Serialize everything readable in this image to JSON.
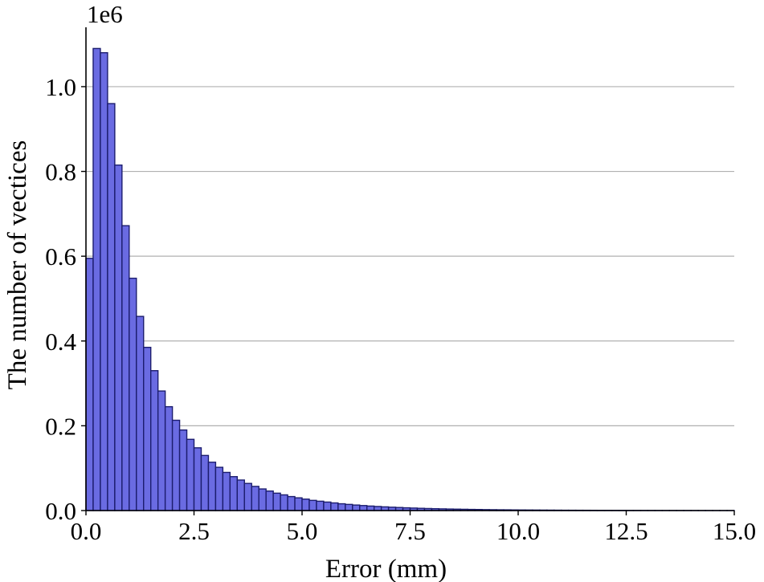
{
  "chart_data": {
    "type": "bar",
    "subtype": "histogram",
    "title": "",
    "xlabel": "Error (mm)",
    "ylabel": "The number of vectices",
    "y_multiplier_label": "1e6",
    "xlim": [
      0,
      15
    ],
    "ylim": [
      0,
      1.14
    ],
    "y_scale_factor": 1000000,
    "x_ticks": [
      0,
      2.5,
      5,
      7.5,
      10,
      12.5,
      15
    ],
    "x_tick_labels": [
      "0.0",
      "2.5",
      "5.0",
      "7.5",
      "10.0",
      "12.5",
      "15.0"
    ],
    "y_ticks": [
      0,
      0.2,
      0.4,
      0.6,
      0.8,
      1.0
    ],
    "y_tick_labels": [
      "0.0",
      "0.2",
      "0.4",
      "0.6",
      "0.8",
      "1.0"
    ],
    "grid": "horizontal",
    "bar_color": "#6a6be2",
    "edge_color": "#1c1d6e",
    "bin_width": 0.16667,
    "bin_start": 0.0,
    "values": [
      0.595,
      1.09,
      1.08,
      0.96,
      0.815,
      0.672,
      0.548,
      0.458,
      0.385,
      0.33,
      0.282,
      0.245,
      0.213,
      0.19,
      0.168,
      0.148,
      0.13,
      0.114,
      0.102,
      0.09,
      0.08,
      0.072,
      0.064,
      0.057,
      0.051,
      0.046,
      0.041,
      0.037,
      0.033,
      0.03,
      0.027,
      0.024,
      0.022,
      0.02,
      0.018,
      0.016,
      0.0145,
      0.013,
      0.0118,
      0.0106,
      0.0096,
      0.0087,
      0.0079,
      0.0072,
      0.0065,
      0.0059,
      0.0053,
      0.0048,
      0.0044,
      0.004,
      0.0036,
      0.0033,
      0.003,
      0.0027,
      0.0025,
      0.0022,
      0.002,
      0.0018,
      0.0017,
      0.0015,
      0.0014,
      0.0013,
      0.0012,
      0.0011,
      0.001,
      0.0009,
      0.0008,
      0.00075,
      0.0007,
      0.00065,
      0.0006,
      0.00055,
      0.0005,
      0.00045,
      0.0004,
      0.00036,
      0.00033,
      0.0003,
      0.00027,
      0.00025,
      0.00022,
      0.0002,
      0.00018,
      0.00016,
      0.00014,
      0.00012,
      0.0001,
      9e-05,
      8e-05,
      7e-05
    ]
  }
}
